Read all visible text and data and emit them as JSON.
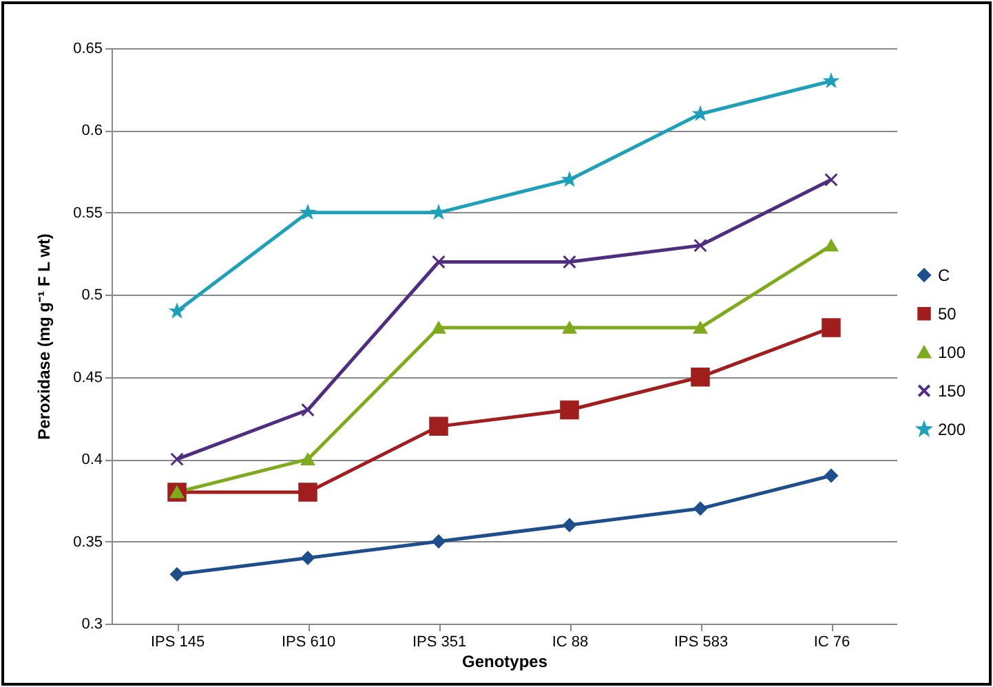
{
  "chart_data": {
    "type": "line",
    "xlabel": "Genotypes",
    "ylabel": "Peroxidase (mg g⁻¹ F L wt)",
    "categories": [
      "IPS 145",
      "IPS 610",
      "IPS 351",
      "IC 88",
      "IPS 583",
      "IC 76"
    ],
    "series": [
      {
        "name": "C",
        "color": "#1f4e8c",
        "marker": "diamond",
        "values": [
          0.33,
          0.34,
          0.35,
          0.36,
          0.37,
          0.39
        ]
      },
      {
        "name": "50",
        "color": "#a01e1e",
        "marker": "square",
        "values": [
          0.38,
          0.38,
          0.42,
          0.43,
          0.45,
          0.48
        ]
      },
      {
        "name": "100",
        "color": "#7faa1e",
        "marker": "triangle",
        "values": [
          0.38,
          0.4,
          0.48,
          0.48,
          0.48,
          0.53
        ]
      },
      {
        "name": "150",
        "color": "#4f2d7f",
        "marker": "cross",
        "values": [
          0.4,
          0.43,
          0.52,
          0.52,
          0.53,
          0.57
        ]
      },
      {
        "name": "200",
        "color": "#1f9fb8",
        "marker": "star",
        "values": [
          0.49,
          0.55,
          0.55,
          0.57,
          0.61,
          0.63
        ]
      }
    ],
    "ylim": [
      0.3,
      0.65
    ],
    "yticks": [
      0.3,
      0.35,
      0.4,
      0.45,
      0.5,
      0.55,
      0.6,
      0.65
    ],
    "grid": "y",
    "legend": "right",
    "line_style": "solid"
  }
}
